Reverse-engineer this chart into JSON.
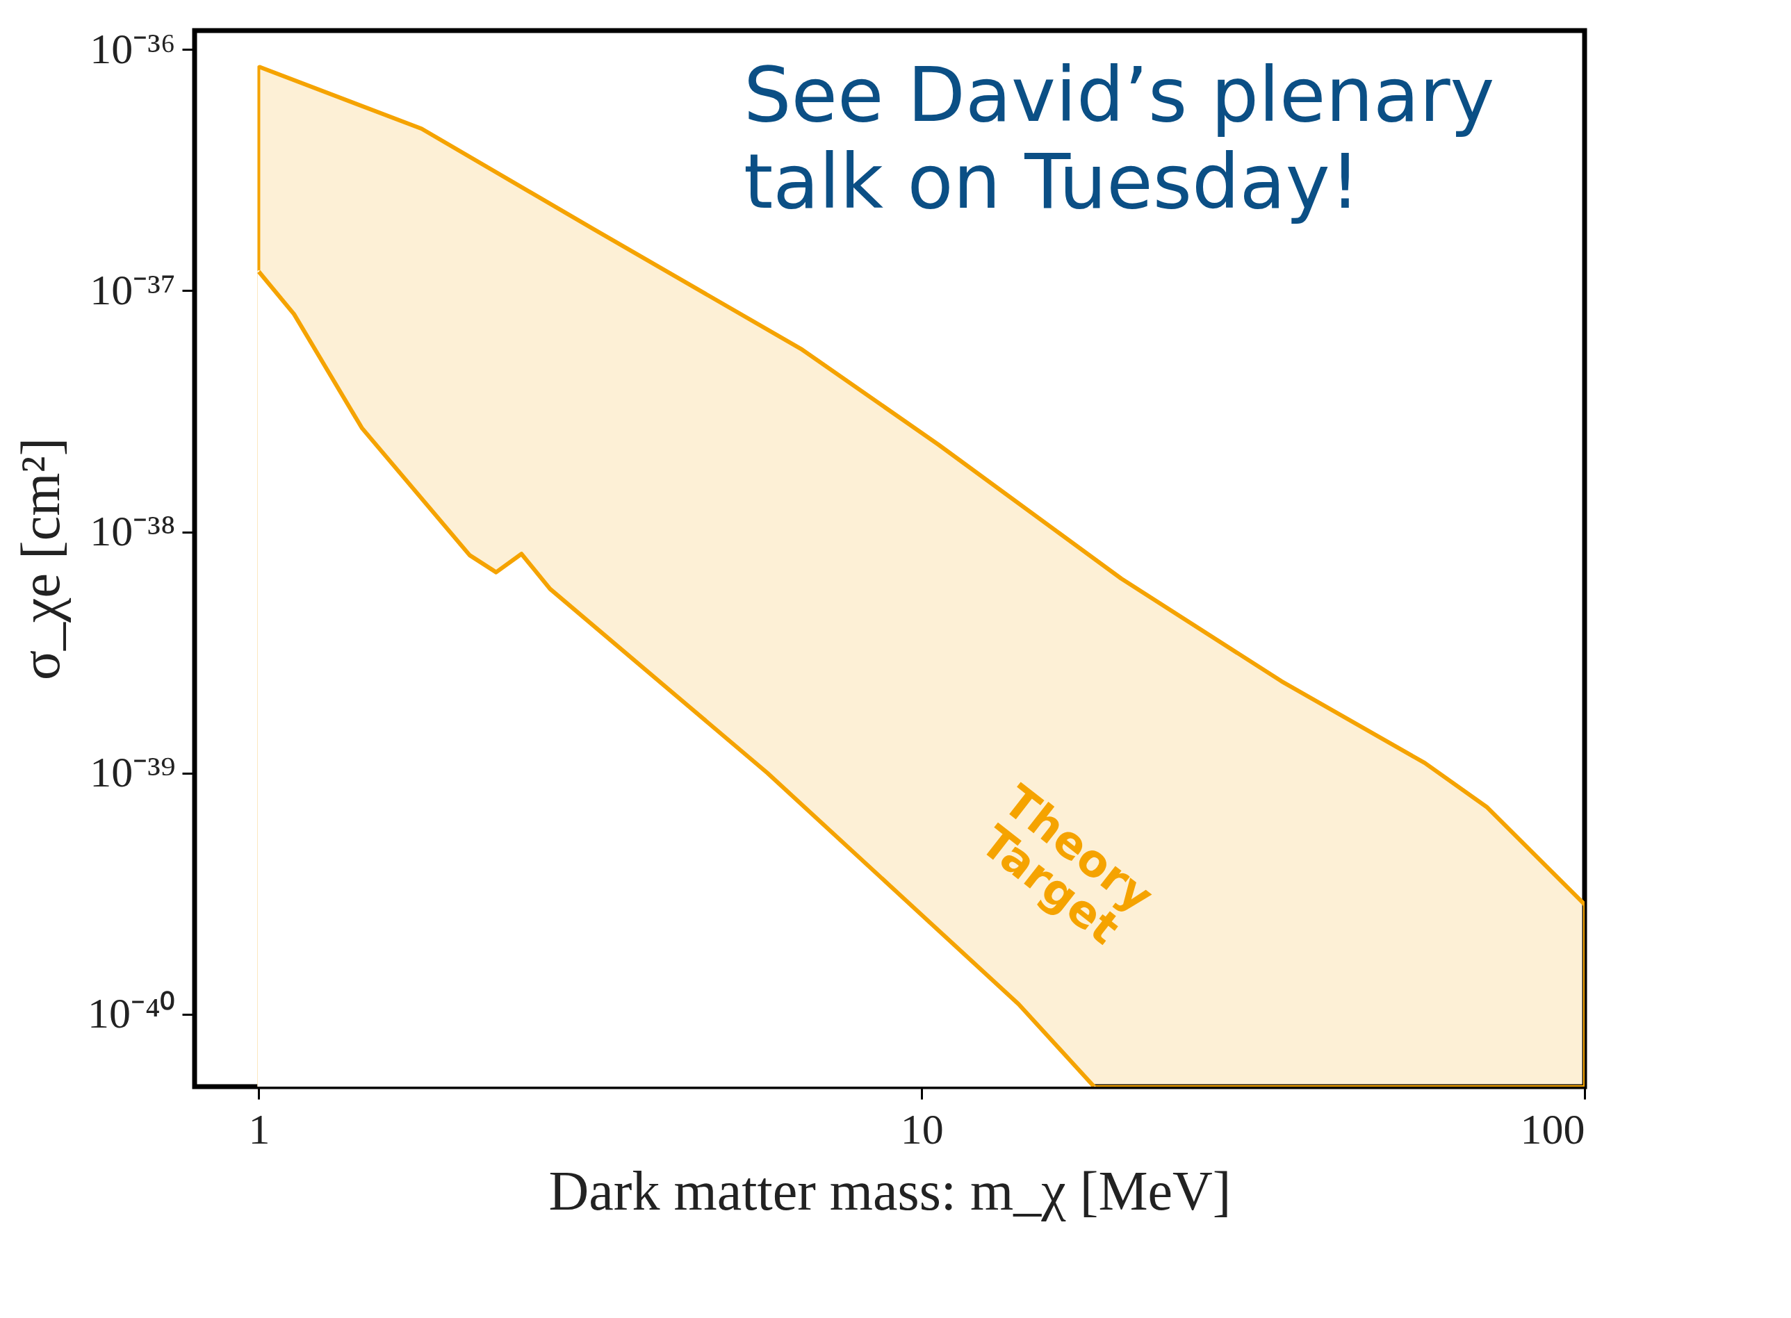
{
  "chart_data": {
    "type": "area",
    "xlabel": "Dark matter mass: m_χ [MeV]",
    "ylabel": "σ_χe [cm²]",
    "log": "xy",
    "grid": false,
    "xlim": [
      0.8,
      100
    ],
    "ylim": [
      5e-41,
      1.2e-36
    ],
    "xticks": [
      1,
      10,
      100
    ],
    "yticks": [
      {
        "value": 1e-40,
        "label": "10⁻⁴⁰"
      },
      {
        "value": 1e-39,
        "label": "10⁻³⁹"
      },
      {
        "value": 1e-38,
        "label": "10⁻³⁸"
      },
      {
        "value": 1e-37,
        "label": "10⁻³⁷"
      },
      {
        "value": 1e-36,
        "label": "10⁻³⁶"
      }
    ],
    "series": [
      {
        "color": "#f5a300",
        "x": [
          1,
          1.76,
          3.2,
          6.6,
          10.6,
          20,
          34.9,
          57.4,
          71.3,
          100
        ],
        "values": [
          8.5e-37,
          4.7e-37,
          1.8e-37,
          5.7e-38,
          2.3e-38,
          6.4e-39,
          2.4e-39,
          1.1e-39,
          7.2e-40,
          2.85e-40
        ]
      },
      {
        "color": "#f5a300",
        "x": [
          1,
          1.13,
          1.43,
          2.08,
          2.28,
          2.49,
          2.75,
          5.85,
          14,
          18.2
        ],
        "values": [
          1.2e-37,
          8e-38,
          2.7e-38,
          8e-39,
          6.8e-39,
          8.1e-39,
          5.8e-39,
          1e-39,
          1.1e-40,
          5e-41
        ]
      }
    ],
    "annotations": [
      "See David’s plenary\ntalk on Tuesday!",
      "Theory\nTarget"
    ]
  }
}
